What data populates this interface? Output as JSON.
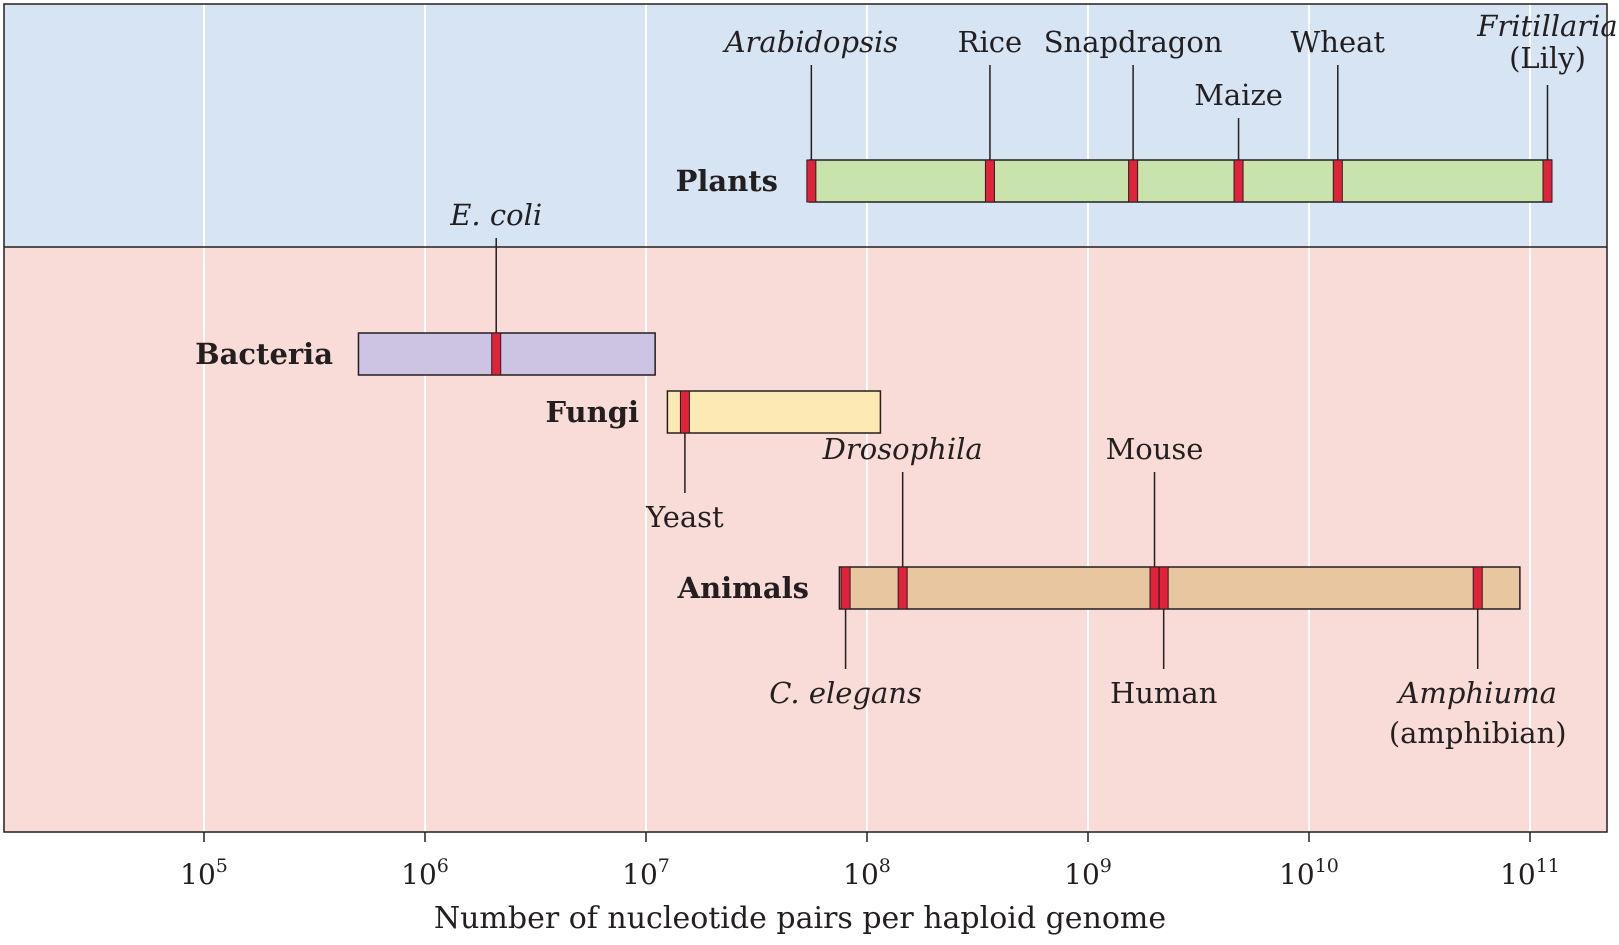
{
  "colors": {
    "plant_panel": "#d6e4f4",
    "other_panel": "#f9dcd7",
    "gridline": "#ffffff",
    "marker": "#e0233b",
    "plants_bar": "#c8e3ac",
    "bacteria_bar": "#cdc3e2",
    "fungi_bar": "#fbeab4",
    "animals_bar": "#e8c7a0",
    "outline": "#231f20"
  },
  "chart_data": {
    "type": "range-bar",
    "scale": "log",
    "xlabel": "Number of nucleotide pairs per haploid genome",
    "xlim": [
      15000,
      160000000000.0
    ],
    "ticks": [
      {
        "value": 100000.0,
        "base": "10",
        "exp": "5"
      },
      {
        "value": 1000000.0,
        "base": "10",
        "exp": "6"
      },
      {
        "value": 10000000.0,
        "base": "10",
        "exp": "7"
      },
      {
        "value": 100000000.0,
        "base": "10",
        "exp": "8"
      },
      {
        "value": 1000000000.0,
        "base": "10",
        "exp": "9"
      },
      {
        "value": 10000000000.0,
        "base": "10",
        "exp": "10"
      },
      {
        "value": 100000000000.0,
        "base": "10",
        "exp": "11"
      }
    ],
    "groups": [
      {
        "name": "Plants",
        "panel": "plant",
        "range": [
          55000000.0,
          125000000000.0
        ],
        "color_key": "plants_bar",
        "organisms": [
          {
            "name": "Arabidopsis",
            "value": 56000000.0,
            "italic": true,
            "side": "above",
            "level": 0
          },
          {
            "name": "Rice",
            "value": 360000000.0,
            "italic": false,
            "side": "above",
            "level": 0
          },
          {
            "name": "Snapdragon",
            "value": 1600000000.0,
            "italic": false,
            "side": "above",
            "level": 0
          },
          {
            "name": "Maize",
            "value": 4800000000.0,
            "italic": false,
            "side": "above",
            "level": 1
          },
          {
            "name": "Wheat",
            "value": 13500000000.0,
            "italic": false,
            "side": "above",
            "level": 0
          },
          {
            "name": "Fritillaria",
            "value": 120000000000.0,
            "italic": true,
            "side": "above",
            "level": -1,
            "extra": "(Lily)"
          }
        ]
      },
      {
        "name": "Bacteria",
        "panel": "other",
        "range": [
          500000.0,
          11000000.0
        ],
        "color_key": "bacteria_bar",
        "organisms": [
          {
            "name": "E. coli",
            "value": 2100000.0,
            "italic": true,
            "side": "above",
            "level": 0
          }
        ]
      },
      {
        "name": "Fungi",
        "panel": "other",
        "range": [
          12500000.0,
          115000000.0
        ],
        "color_key": "fungi_bar",
        "organisms": [
          {
            "name": "Yeast",
            "value": 15000000.0,
            "italic": false,
            "side": "below",
            "level": 0
          }
        ]
      },
      {
        "name": "Animals",
        "panel": "other",
        "range": [
          75000000.0,
          90000000000.0
        ],
        "color_key": "animals_bar",
        "organisms": [
          {
            "name": "C. elegans",
            "value": 80000000.0,
            "italic": true,
            "side": "below",
            "level": 0
          },
          {
            "name": "Drosophila",
            "value": 145000000.0,
            "italic": true,
            "side": "above",
            "level": 0
          },
          {
            "name": "Mouse",
            "value": 2000000000.0,
            "italic": false,
            "side": "above",
            "level": 0
          },
          {
            "name": "Human",
            "value": 2200000000.0,
            "italic": false,
            "side": "below",
            "level": 0
          },
          {
            "name": "Amphiuma",
            "value": 58000000000.0,
            "italic": true,
            "side": "below",
            "level": 0,
            "extra": "(amphibian)"
          }
        ]
      }
    ]
  }
}
